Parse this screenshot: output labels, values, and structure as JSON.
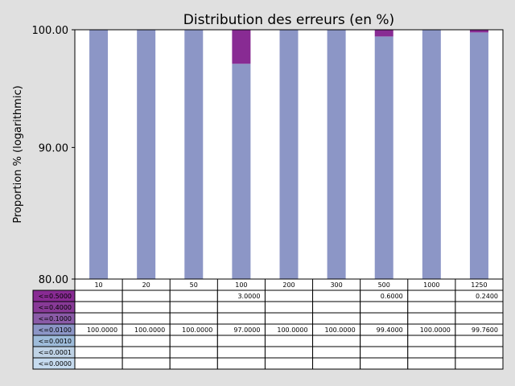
{
  "chart_data": {
    "type": "bar",
    "title": "Distribution des erreurs (en %)",
    "ylabel": "Proportion % (logarithmic)",
    "yscale": "log",
    "ylim": [
      80,
      100
    ],
    "yticks": [
      "80.00",
      "90.00",
      "100.00"
    ],
    "ytick_values": [
      80,
      90,
      100
    ],
    "categories": [
      "10",
      "20",
      "50",
      "100",
      "200",
      "300",
      "500",
      "1000",
      "1250"
    ],
    "series": [
      {
        "name": "<=0.5000",
        "color": "#882b93",
        "values": [
          0,
          0,
          0,
          3.0,
          0,
          0,
          0.6,
          0,
          0.24
        ],
        "labels": [
          "",
          "",
          "",
          "3.0000",
          "",
          "",
          "0.6000",
          "",
          "0.2400"
        ]
      },
      {
        "name": "<=0.4000",
        "color": "#883a97",
        "values": [
          0,
          0,
          0,
          0,
          0,
          0,
          0,
          0,
          0
        ],
        "labels": [
          "",
          "",
          "",
          "",
          "",
          "",
          "",
          "",
          ""
        ]
      },
      {
        "name": "<=0.1000",
        "color": "#8a5ba7",
        "values": [
          0,
          0,
          0,
          0,
          0,
          0,
          0,
          0,
          0
        ],
        "labels": [
          "",
          "",
          "",
          "",
          "",
          "",
          "",
          "",
          ""
        ]
      },
      {
        "name": "<=0.0100",
        "color": "#8c96c6",
        "values": [
          100,
          100,
          100,
          97.0,
          100,
          100,
          99.4,
          100,
          99.76
        ],
        "labels": [
          "100.0000",
          "100.0000",
          "100.0000",
          "97.0000",
          "100.0000",
          "100.0000",
          "99.4000",
          "100.0000",
          "99.7600"
        ]
      },
      {
        "name": "<=0.0010",
        "color": "#9ebcda",
        "values": [
          0,
          0,
          0,
          0,
          0,
          0,
          0,
          0,
          0
        ],
        "labels": [
          "",
          "",
          "",
          "",
          "",
          "",
          "",
          "",
          ""
        ]
      },
      {
        "name": "<=0.0001",
        "color": "#bfd3e6",
        "values": [
          0,
          0,
          0,
          0,
          0,
          0,
          0,
          0,
          0
        ],
        "labels": [
          "",
          "",
          "",
          "",
          "",
          "",
          "",
          "",
          ""
        ]
      },
      {
        "name": "<=0.0000",
        "color": "#c6dbef",
        "values": [
          0,
          0,
          0,
          0,
          0,
          0,
          0,
          0,
          0
        ],
        "labels": [
          "",
          "",
          "",
          "",
          "",
          "",
          "",
          "",
          ""
        ]
      }
    ],
    "grid": false,
    "legend": "table-below"
  }
}
